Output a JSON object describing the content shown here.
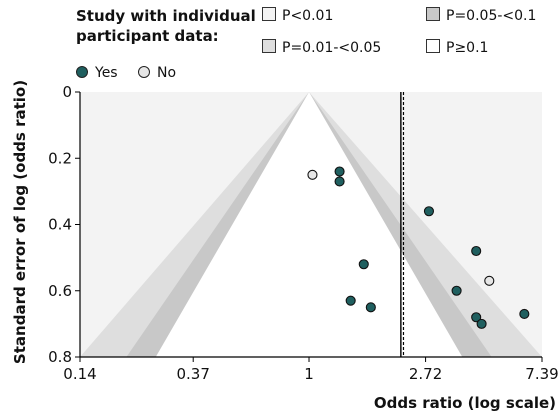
{
  "legend": {
    "title": "Study with individual participant data:",
    "contours": [
      {
        "label": "P<0.01",
        "color": "#f3f3f3"
      },
      {
        "label": "P=0.05-<0.1",
        "color": "#c8c8c8"
      },
      {
        "label": "P=0.01-<0.05",
        "color": "#dedede"
      },
      {
        "label": "P≥0.1",
        "color": "#ffffff"
      }
    ],
    "points": [
      {
        "label": "Yes",
        "color": "#1f5f5f"
      },
      {
        "label": "No",
        "color": "#e6e6e6"
      }
    ]
  },
  "chart_data": {
    "type": "scatter",
    "title": "",
    "xlabel": "Odds ratio (log scale)",
    "ylabel": "Standard error of log (odds ratio)",
    "x_scale": "log",
    "xlim": [
      0.14,
      7.39
    ],
    "ylim": [
      0.8,
      0
    ],
    "xticks": [
      {
        "value": 0.14,
        "label": "0.14"
      },
      {
        "value": 0.37,
        "label": "0.37"
      },
      {
        "value": 1,
        "label": "1"
      },
      {
        "value": 2.72,
        "label": "2.72"
      },
      {
        "value": 7.39,
        "label": "7.39"
      }
    ],
    "yticks": [
      {
        "value": 0,
        "label": "0"
      },
      {
        "value": 0.2,
        "label": "0.2"
      },
      {
        "value": 0.4,
        "label": "0.4"
      },
      {
        "value": 0.6,
        "label": "0.6"
      },
      {
        "value": 0.8,
        "label": "0.8"
      }
    ],
    "pooled_estimate_line": 2.2,
    "null_line": 2.25,
    "series": [
      {
        "name": "Yes",
        "points": [
          {
            "x": 1.3,
            "y": 0.24
          },
          {
            "x": 1.3,
            "y": 0.27
          },
          {
            "x": 2.8,
            "y": 0.36
          },
          {
            "x": 1.6,
            "y": 0.52
          },
          {
            "x": 4.2,
            "y": 0.48
          },
          {
            "x": 3.55,
            "y": 0.6
          },
          {
            "x": 1.43,
            "y": 0.63
          },
          {
            "x": 1.7,
            "y": 0.65
          },
          {
            "x": 4.2,
            "y": 0.68
          },
          {
            "x": 4.4,
            "y": 0.7
          },
          {
            "x": 6.35,
            "y": 0.67
          }
        ]
      },
      {
        "name": "No",
        "points": [
          {
            "x": 1.03,
            "y": 0.25
          },
          {
            "x": 4.7,
            "y": 0.57
          }
        ]
      }
    ]
  }
}
